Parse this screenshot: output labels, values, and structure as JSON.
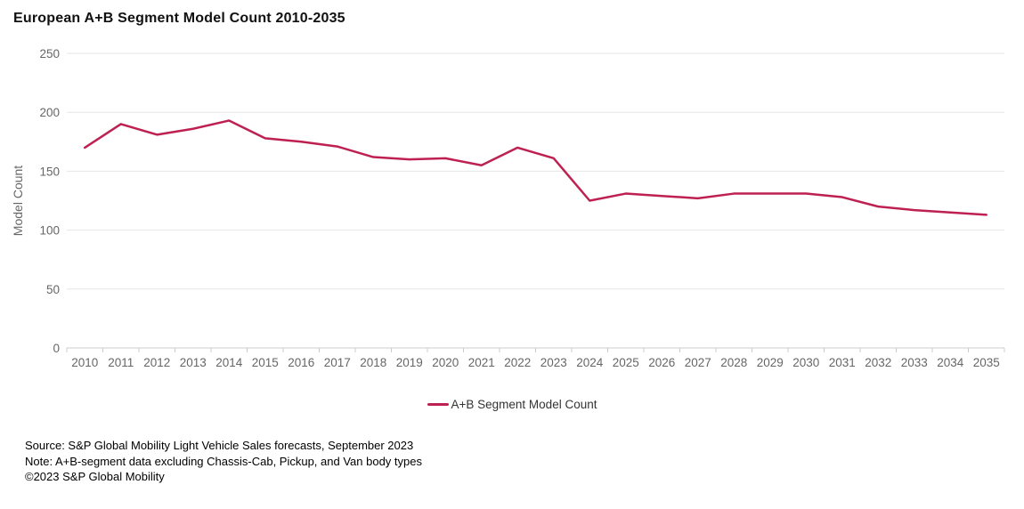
{
  "chart_data": {
    "type": "line",
    "title": "European A+B Segment Model Count 2010-2035",
    "xlabel": "",
    "ylabel": "Model Count",
    "ylim": [
      0,
      250
    ],
    "y_ticks": [
      0,
      50,
      100,
      150,
      200,
      250
    ],
    "grid": "horizontal gridlines on",
    "legend_position": "bottom-center",
    "categories": [
      "2010",
      "2011",
      "2012",
      "2013",
      "2014",
      "2015",
      "2016",
      "2017",
      "2018",
      "2019",
      "2020",
      "2021",
      "2022",
      "2023",
      "2024",
      "2025",
      "2026",
      "2027",
      "2028",
      "2029",
      "2030",
      "2031",
      "2032",
      "2033",
      "2034",
      "2035"
    ],
    "series": [
      {
        "name": "A+B Segment Model Count",
        "color": "#BE2151",
        "values": [
          170,
          190,
          181,
          186,
          193,
          178,
          175,
          171,
          162,
          160,
          161,
          155,
          170,
          161,
          125,
          131,
          129,
          127,
          131,
          131,
          131,
          128,
          120,
          117,
          115,
          113
        ]
      }
    ],
    "colors": {
      "accent": "#BE2151",
      "grid": "#e6e6e6",
      "axis": "#cccccc",
      "tick_label": "#666666",
      "axis_title": "#666666",
      "legend_text": "#333333",
      "title_text": "#111111"
    }
  },
  "footer": {
    "source": "Source: S&P Global Mobility Light Vehicle Sales forecasts, September 2023",
    "note": "Note: A+B-segment data excluding Chassis-Cab, Pickup, and Van body types",
    "copyright": "©2023 S&P Global Mobility"
  }
}
